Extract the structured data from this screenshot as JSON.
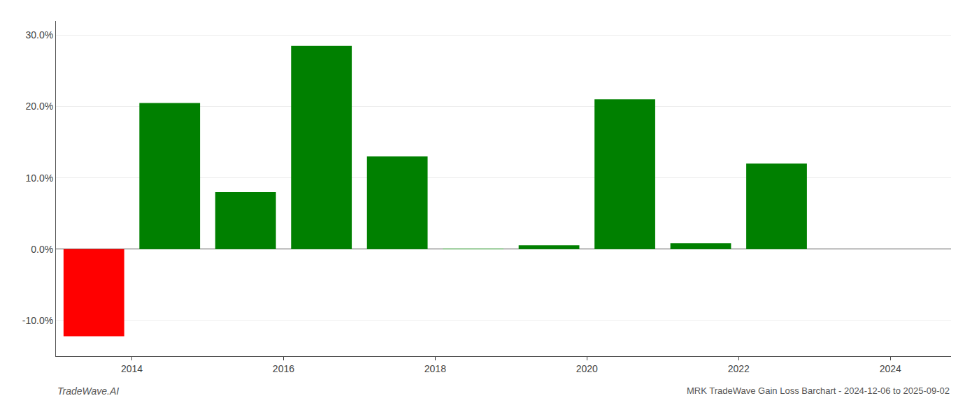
{
  "chart_data": {
    "type": "bar",
    "title": "MRK TradeWave Gain Loss Barchart - 2024-12-06 to 2025-09-02",
    "annotations": [
      "TradeWave.AI"
    ],
    "x": [
      2013.5,
      2014.5,
      2015.5,
      2016.5,
      2017.5,
      2018.5,
      2019.5,
      2020.5,
      2021.5,
      2022.5,
      2023.5
    ],
    "values": [
      -12.2,
      20.5,
      8.0,
      28.5,
      13.0,
      0.05,
      0.55,
      21.0,
      0.85,
      12.0,
      0.0
    ],
    "colors": [
      "#ff0000",
      "#008000",
      "#008000",
      "#008000",
      "#008000",
      "#008000",
      "#008000",
      "#008000",
      "#008000",
      "#008000",
      "#008000"
    ],
    "xlim": [
      2013.0,
      2024.8
    ],
    "xticks": [
      2014,
      2016,
      2018,
      2020,
      2022,
      2024
    ],
    "ylim": [
      -15,
      32
    ],
    "yticks": [
      {
        "value": -10,
        "label": "-10.0%"
      },
      {
        "value": 0,
        "label": "0.0%"
      },
      {
        "value": 10,
        "label": "10.0%"
      },
      {
        "value": 20,
        "label": "20.0%"
      },
      {
        "value": 30,
        "label": "30.0%"
      }
    ],
    "grid": true
  }
}
